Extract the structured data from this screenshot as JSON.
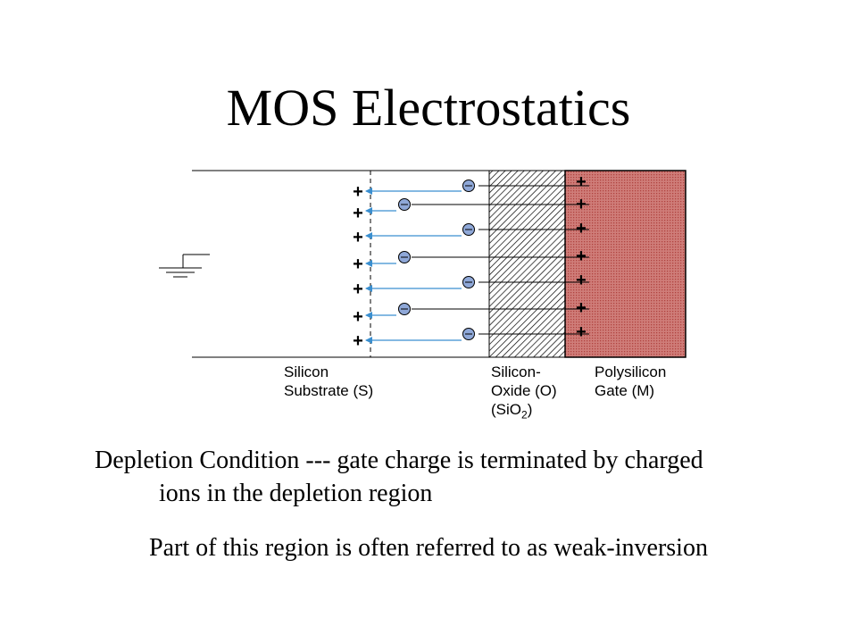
{
  "slide": {
    "title": "MOS Electrostatics",
    "description_line1": "Depletion Condition --- gate charge is terminated by charged",
    "description_line2": "ions in the depletion region",
    "note": "Part of this region is often referred to as weak-inversion"
  },
  "diagram": {
    "substrate_label_line1": "Silicon",
    "substrate_label_line2": "Substrate (S)",
    "oxide_label_line1": "Silicon-",
    "oxide_label_line2": "Oxide (O)",
    "oxide_label_line3_prefix": "(SiO",
    "oxide_label_line3_sub": "2",
    "oxide_label_line3_suffix": ")",
    "gate_label_line1": "Polysilicon",
    "gate_label_line2": "Gate (M)",
    "plus_symbol": "+",
    "minus_symbol": "−",
    "colors": {
      "gate_fill": "#c8706e",
      "arrow": "#3a8fd0",
      "ion_fill": "#8fa8d8"
    }
  }
}
